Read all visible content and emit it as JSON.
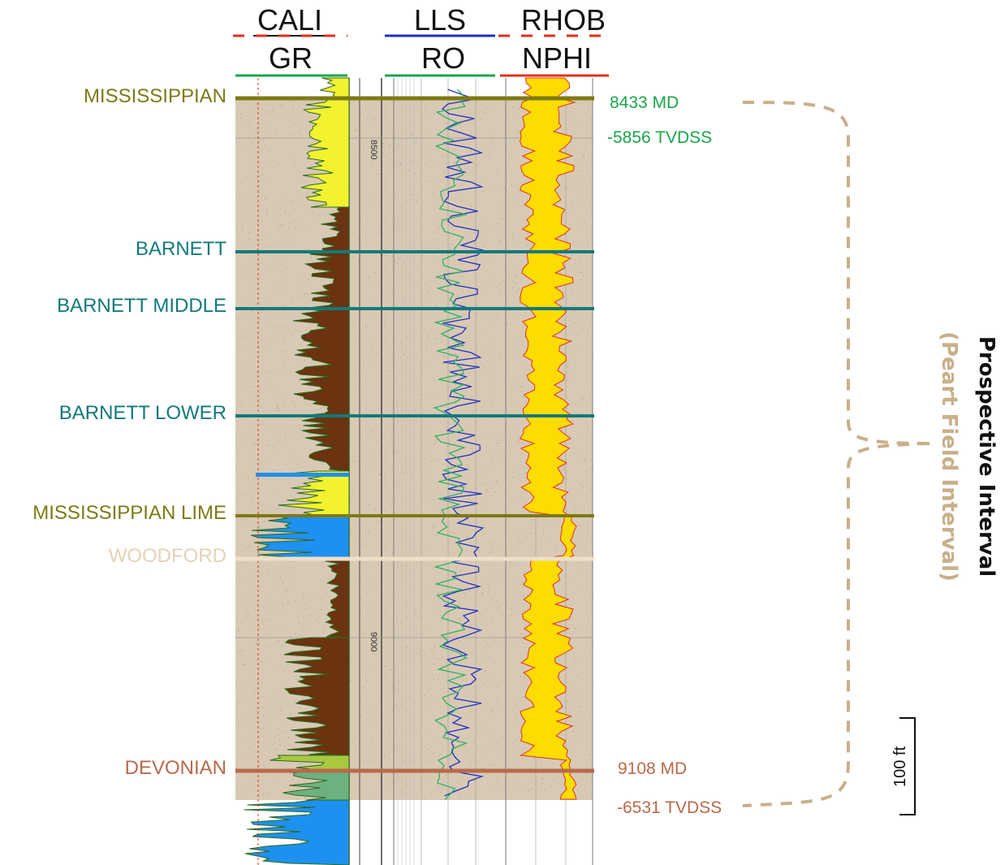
{
  "track_headers": {
    "track1_top": "CALI",
    "track1_bottom": "GR",
    "track2_top": "LLS",
    "track2_bottom": "RO",
    "track3_top": "RHOB",
    "track3_bottom": "NPHI"
  },
  "formation_tops": [
    {
      "name": "MISSISSIPPIAN",
      "color": "#7d7a15"
    },
    {
      "name": "BARNETT",
      "color": "#14797a"
    },
    {
      "name": "BARNETT MIDDLE",
      "color": "#14797a"
    },
    {
      "name": "BARNETT LOWER",
      "color": "#14797a"
    },
    {
      "name": "MISSISSIPPIAN LIME",
      "color": "#7d7a15"
    },
    {
      "name": "WOODFORD",
      "color": "#eedfc8"
    },
    {
      "name": "DEVONIAN",
      "color": "#b86a4a"
    }
  ],
  "depth_labels": [
    "8500",
    "9000"
  ],
  "annotations": {
    "top_md": "8433 MD",
    "top_tvdss": "-5856 TVDSS",
    "bottom_md": "9108 MD",
    "bottom_tvdss": "-6531 TVDSS",
    "top_color": "#1aa64a",
    "bottom_color": "#b86a4a"
  },
  "interval": {
    "title": "Prospective Interval",
    "subtitle": "(Peart Field Interval)",
    "bracket_color": "#c8b08a"
  },
  "scale_bar": {
    "label": "100 ft"
  },
  "colors": {
    "interval_fill": "#d8c9b4",
    "gr_sand": "#f2f230",
    "gr_shale": "#6b3310",
    "lime": "#1e90f0",
    "density_fill": "#ffdc00",
    "cali_color": "#e03020",
    "lls_color": "#2030c0",
    "ro_color": "#30b060",
    "rhob_color": "#e03020"
  }
}
